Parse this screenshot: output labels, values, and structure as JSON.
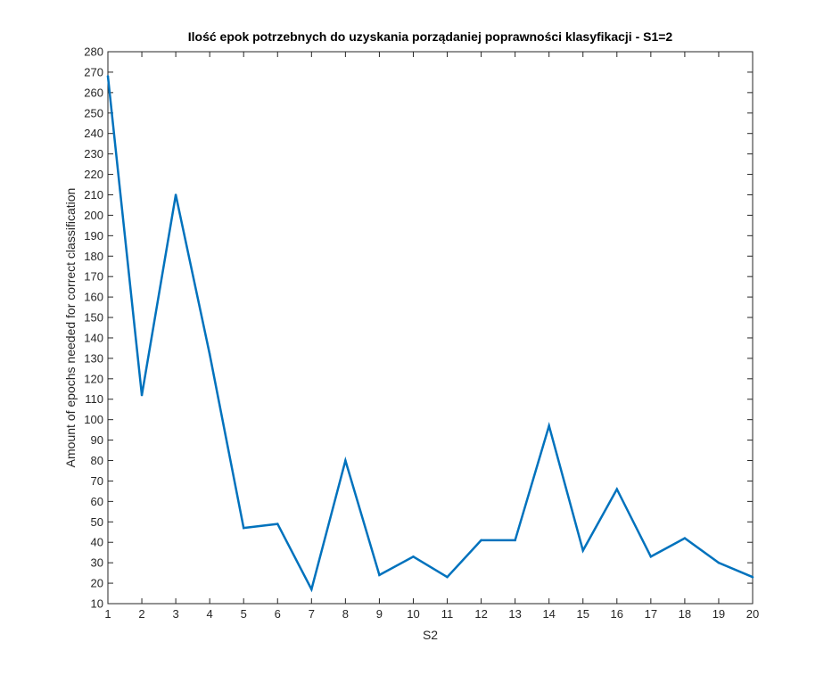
{
  "chart_data": {
    "type": "line",
    "title": "Ilość epok potrzebnych do uzyskania porządaniej poprawności klasyfikacji - S1=2",
    "xlabel": "S2",
    "ylabel": "Amount of epochs needed for correct classification",
    "xlim": [
      1,
      20
    ],
    "ylim": [
      10,
      280
    ],
    "xticks": [
      1,
      2,
      3,
      4,
      5,
      6,
      7,
      8,
      9,
      10,
      11,
      12,
      13,
      14,
      15,
      16,
      17,
      18,
      19,
      20
    ],
    "yticks": [
      10,
      20,
      30,
      40,
      50,
      60,
      70,
      80,
      90,
      100,
      110,
      120,
      130,
      140,
      150,
      160,
      170,
      180,
      190,
      200,
      210,
      220,
      230,
      240,
      250,
      260,
      270,
      280
    ],
    "grid": false,
    "legend": "none",
    "series": [
      {
        "color": "#0072BD",
        "x": [
          1,
          2,
          3,
          4,
          5,
          6,
          7,
          8,
          9,
          10,
          11,
          12,
          13,
          14,
          15,
          16,
          17,
          18,
          19,
          20
        ],
        "y": [
          268,
          112,
          210,
          132,
          47,
          49,
          17,
          80,
          24,
          33,
          23,
          41,
          41,
          97,
          36,
          66,
          33,
          42,
          30,
          23
        ]
      }
    ]
  }
}
